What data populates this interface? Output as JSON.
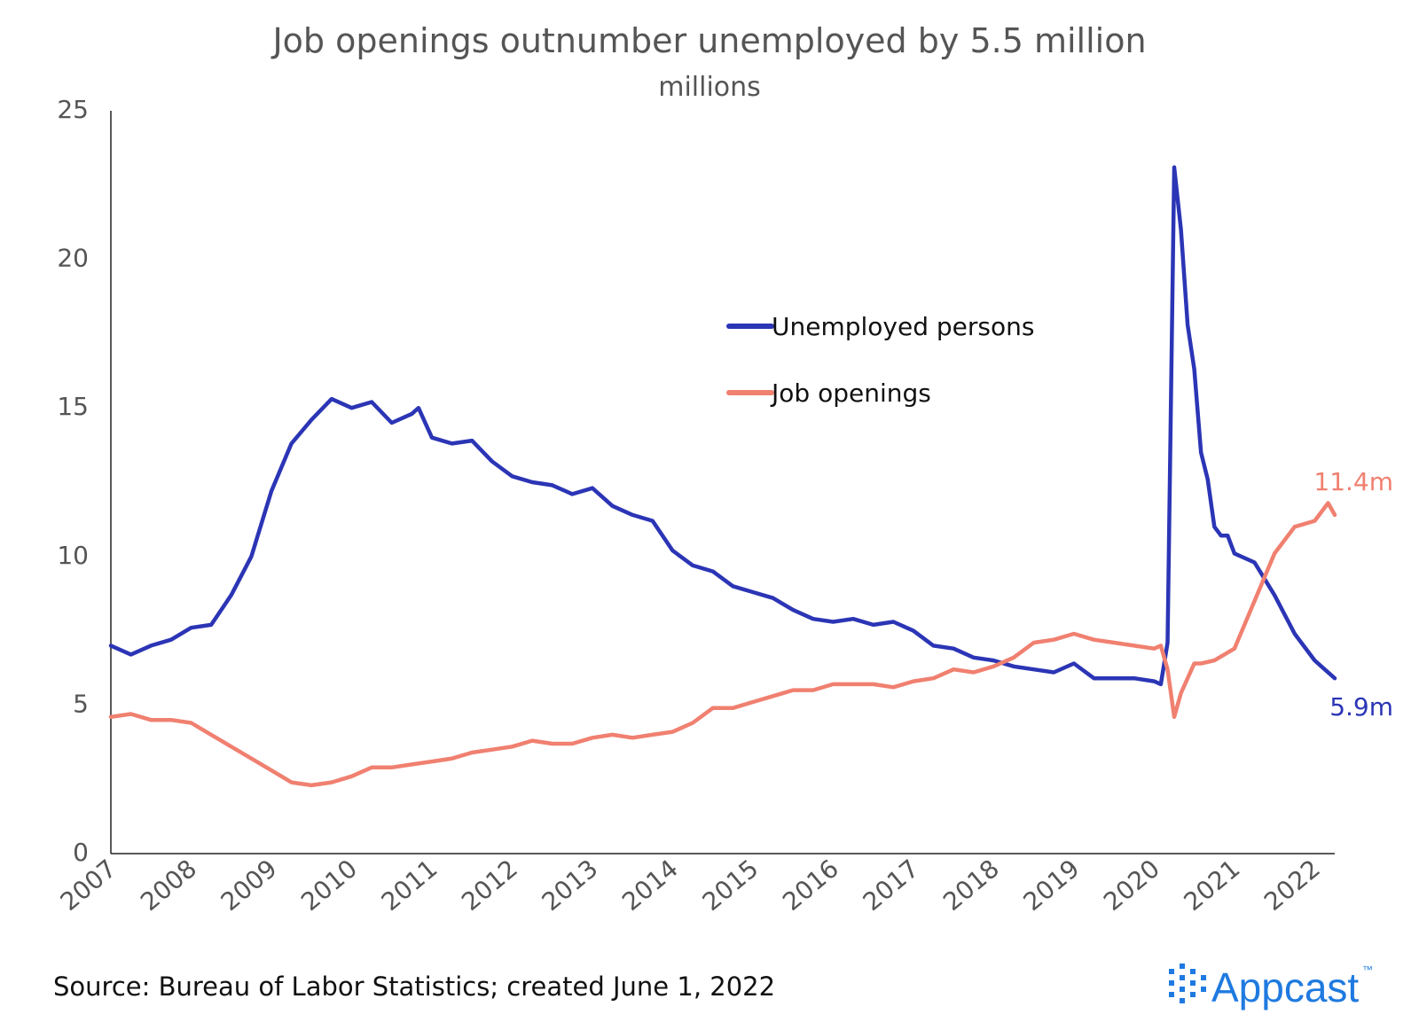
{
  "chart_data": {
    "type": "line",
    "title": "Job openings outnumber unemployed by 5.5 million",
    "subtitle": "millions",
    "xlabel": "",
    "ylabel": "",
    "ylim": [
      0,
      25
    ],
    "yticks": [
      "0",
      "5",
      "10",
      "15",
      "20",
      "25"
    ],
    "xlim": [
      "2007-01",
      "2022-04"
    ],
    "xticks": [
      "2007",
      "2008",
      "2009",
      "2010",
      "2011",
      "2012",
      "2013",
      "2014",
      "2015",
      "2016",
      "2017",
      "2018",
      "2019",
      "2020",
      "2021",
      "2022"
    ],
    "grid": false,
    "legend": "center-right",
    "x_unit": "month",
    "series": [
      {
        "name": "Unemployed persons",
        "color": "#2b35b5",
        "end_label": "5.9m",
        "points": [
          [
            "2007-01",
            7.0
          ],
          [
            "2007-04",
            6.7
          ],
          [
            "2007-07",
            7.0
          ],
          [
            "2007-10",
            7.2
          ],
          [
            "2008-01",
            7.6
          ],
          [
            "2008-04",
            7.7
          ],
          [
            "2008-07",
            8.7
          ],
          [
            "2008-10",
            10.0
          ],
          [
            "2009-01",
            12.2
          ],
          [
            "2009-04",
            13.8
          ],
          [
            "2009-07",
            14.6
          ],
          [
            "2009-10",
            15.3
          ],
          [
            "2010-01",
            15.0
          ],
          [
            "2010-04",
            15.2
          ],
          [
            "2010-07",
            14.5
          ],
          [
            "2010-10",
            14.8
          ],
          [
            "2010-11",
            15.0
          ],
          [
            "2011-01",
            14.0
          ],
          [
            "2011-04",
            13.8
          ],
          [
            "2011-07",
            13.9
          ],
          [
            "2011-10",
            13.2
          ],
          [
            "2012-01",
            12.7
          ],
          [
            "2012-04",
            12.5
          ],
          [
            "2012-07",
            12.4
          ],
          [
            "2012-10",
            12.1
          ],
          [
            "2013-01",
            12.3
          ],
          [
            "2013-04",
            11.7
          ],
          [
            "2013-07",
            11.4
          ],
          [
            "2013-10",
            11.2
          ],
          [
            "2014-01",
            10.2
          ],
          [
            "2014-04",
            9.7
          ],
          [
            "2014-07",
            9.5
          ],
          [
            "2014-10",
            9.0
          ],
          [
            "2015-01",
            8.8
          ],
          [
            "2015-04",
            8.6
          ],
          [
            "2015-07",
            8.2
          ],
          [
            "2015-10",
            7.9
          ],
          [
            "2016-01",
            7.8
          ],
          [
            "2016-04",
            7.9
          ],
          [
            "2016-07",
            7.7
          ],
          [
            "2016-10",
            7.8
          ],
          [
            "2017-01",
            7.5
          ],
          [
            "2017-04",
            7.0
          ],
          [
            "2017-07",
            6.9
          ],
          [
            "2017-10",
            6.6
          ],
          [
            "2018-01",
            6.5
          ],
          [
            "2018-04",
            6.3
          ],
          [
            "2018-07",
            6.2
          ],
          [
            "2018-10",
            6.1
          ],
          [
            "2019-01",
            6.4
          ],
          [
            "2019-04",
            5.9
          ],
          [
            "2019-07",
            5.9
          ],
          [
            "2019-10",
            5.9
          ],
          [
            "2020-01",
            5.8
          ],
          [
            "2020-02",
            5.7
          ],
          [
            "2020-03",
            7.1
          ],
          [
            "2020-04",
            23.1
          ],
          [
            "2020-05",
            21.0
          ],
          [
            "2020-06",
            17.8
          ],
          [
            "2020-07",
            16.3
          ],
          [
            "2020-08",
            13.5
          ],
          [
            "2020-09",
            12.6
          ],
          [
            "2020-10",
            11.0
          ],
          [
            "2020-11",
            10.7
          ],
          [
            "2020-12",
            10.7
          ],
          [
            "2021-01",
            10.1
          ],
          [
            "2021-04",
            9.8
          ],
          [
            "2021-07",
            8.7
          ],
          [
            "2021-10",
            7.4
          ],
          [
            "2022-01",
            6.5
          ],
          [
            "2022-02",
            6.3
          ],
          [
            "2022-04",
            5.9
          ]
        ]
      },
      {
        "name": "Job openings",
        "color": "#f08070",
        "end_label": "11.4m",
        "points": [
          [
            "2007-01",
            4.6
          ],
          [
            "2007-04",
            4.7
          ],
          [
            "2007-07",
            4.5
          ],
          [
            "2007-10",
            4.5
          ],
          [
            "2008-01",
            4.4
          ],
          [
            "2008-04",
            4.0
          ],
          [
            "2008-07",
            3.6
          ],
          [
            "2008-10",
            3.2
          ],
          [
            "2009-01",
            2.8
          ],
          [
            "2009-04",
            2.4
          ],
          [
            "2009-07",
            2.3
          ],
          [
            "2009-10",
            2.4
          ],
          [
            "2010-01",
            2.6
          ],
          [
            "2010-04",
            2.9
          ],
          [
            "2010-07",
            2.9
          ],
          [
            "2010-10",
            3.0
          ],
          [
            "2011-01",
            3.1
          ],
          [
            "2011-04",
            3.2
          ],
          [
            "2011-07",
            3.4
          ],
          [
            "2011-10",
            3.5
          ],
          [
            "2012-01",
            3.6
          ],
          [
            "2012-04",
            3.8
          ],
          [
            "2012-07",
            3.7
          ],
          [
            "2012-10",
            3.7
          ],
          [
            "2013-01",
            3.9
          ],
          [
            "2013-04",
            4.0
          ],
          [
            "2013-07",
            3.9
          ],
          [
            "2013-10",
            4.0
          ],
          [
            "2014-01",
            4.1
          ],
          [
            "2014-04",
            4.4
          ],
          [
            "2014-07",
            4.9
          ],
          [
            "2014-10",
            4.9
          ],
          [
            "2015-01",
            5.1
          ],
          [
            "2015-04",
            5.3
          ],
          [
            "2015-07",
            5.5
          ],
          [
            "2015-10",
            5.5
          ],
          [
            "2016-01",
            5.7
          ],
          [
            "2016-04",
            5.7
          ],
          [
            "2016-07",
            5.7
          ],
          [
            "2016-10",
            5.6
          ],
          [
            "2017-01",
            5.8
          ],
          [
            "2017-04",
            5.9
          ],
          [
            "2017-07",
            6.2
          ],
          [
            "2017-10",
            6.1
          ],
          [
            "2018-01",
            6.3
          ],
          [
            "2018-04",
            6.6
          ],
          [
            "2018-07",
            7.1
          ],
          [
            "2018-10",
            7.2
          ],
          [
            "2019-01",
            7.4
          ],
          [
            "2019-04",
            7.2
          ],
          [
            "2019-07",
            7.1
          ],
          [
            "2019-10",
            7.0
          ],
          [
            "2020-01",
            6.9
          ],
          [
            "2020-02",
            7.0
          ],
          [
            "2020-03",
            6.2
          ],
          [
            "2020-04",
            4.6
          ],
          [
            "2020-05",
            5.4
          ],
          [
            "2020-06",
            5.9
          ],
          [
            "2020-07",
            6.4
          ],
          [
            "2020-08",
            6.4
          ],
          [
            "2020-10",
            6.5
          ],
          [
            "2021-01",
            6.9
          ],
          [
            "2021-04",
            8.5
          ],
          [
            "2021-07",
            10.1
          ],
          [
            "2021-10",
            11.0
          ],
          [
            "2022-01",
            11.2
          ],
          [
            "2022-03",
            11.8
          ],
          [
            "2022-04",
            11.4
          ]
        ]
      }
    ]
  },
  "footer": {
    "source": "Source: Bureau of Labor Statistics; created June 1, 2022",
    "logo_text": "Appcast",
    "logo_tm": "™"
  },
  "colors": {
    "text": "#555555",
    "axis": "#222222",
    "logo": "#1f7ae0"
  }
}
